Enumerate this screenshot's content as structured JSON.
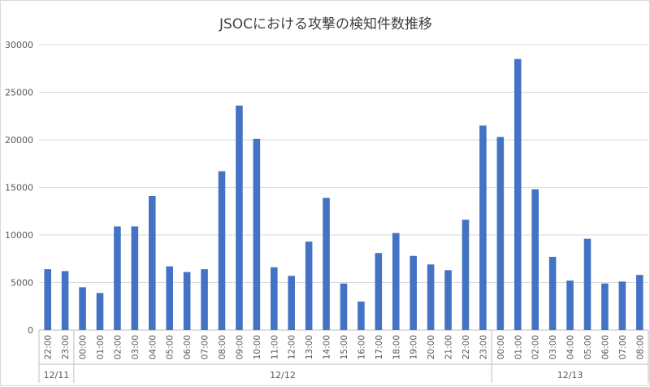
{
  "chart_data": {
    "type": "bar",
    "title": "JSOCにおける攻撃の検知件数推移",
    "xlabel": "",
    "ylabel": "",
    "ylim": [
      0,
      30000
    ],
    "yticks": [
      "0",
      "5000",
      "10000",
      "15000",
      "20000",
      "25000",
      "30000"
    ],
    "grid": true,
    "categories": [
      "22:00",
      "23:00",
      "00:00",
      "01:00",
      "02:00",
      "03:00",
      "04:00",
      "05:00",
      "06:00",
      "07:00",
      "08:00",
      "09:00",
      "10:00",
      "11:00",
      "12:00",
      "13:00",
      "14:00",
      "15:00",
      "16:00",
      "17:00",
      "18:00",
      "19:00",
      "20:00",
      "21:00",
      "22:00",
      "23:00",
      "00:00",
      "01:00",
      "02:00",
      "03:00",
      "04:00",
      "05:00",
      "06:00",
      "07:00",
      "08:00"
    ],
    "values": [
      6400,
      6200,
      4500,
      3900,
      10900,
      10900,
      14100,
      6700,
      6100,
      6400,
      16700,
      23600,
      20100,
      6600,
      5700,
      9300,
      13900,
      4900,
      3000,
      8100,
      10200,
      7800,
      6900,
      6300,
      11600,
      21500,
      20300,
      28500,
      14800,
      7700,
      5200,
      9600,
      4900,
      5100,
      5800
    ],
    "groups": [
      {
        "label": "12/11",
        "count": 2
      },
      {
        "label": "12/12",
        "count": 24
      },
      {
        "label": "12/13",
        "count": 9
      }
    ],
    "colors": {
      "bar": "#4472c4",
      "grid": "#d9d9d9",
      "axis": "#bfbfbf"
    }
  }
}
